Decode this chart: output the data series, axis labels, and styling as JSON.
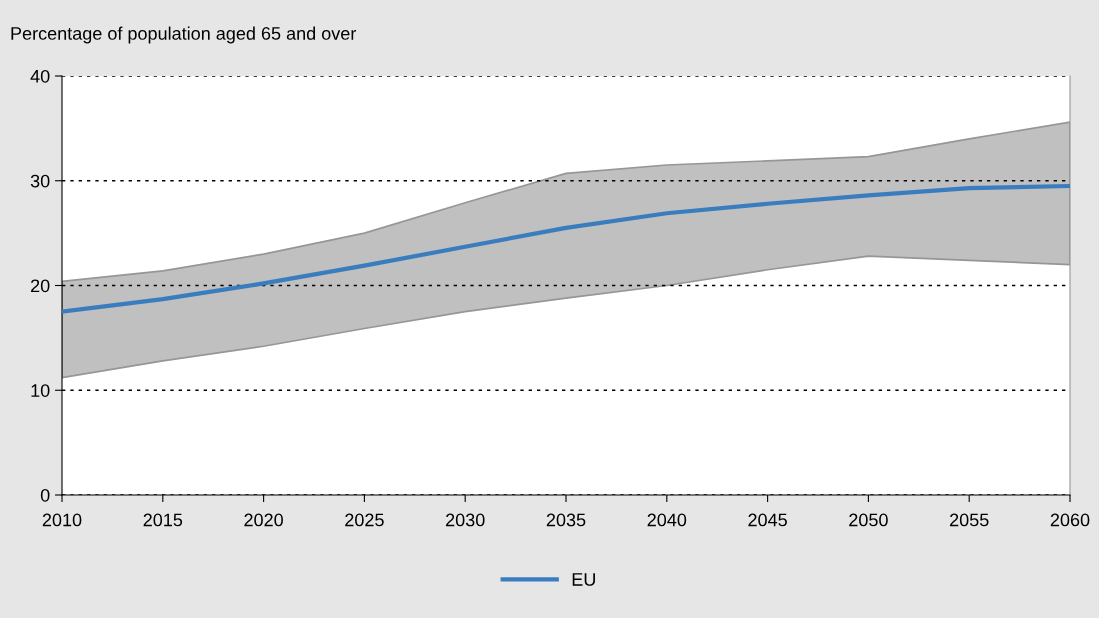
{
  "chart_data": {
    "type": "line",
    "ylabel": "Percentage of population aged 65 and over",
    "x": [
      2010,
      2015,
      2020,
      2025,
      2030,
      2035,
      2040,
      2045,
      2050,
      2055,
      2060
    ],
    "series": [
      {
        "name": "EU",
        "color": "#3a7dbf",
        "values": [
          17.5,
          18.7,
          20.2,
          21.9,
          23.7,
          25.5,
          26.9,
          27.8,
          28.6,
          29.3,
          29.5
        ],
        "lower": [
          11.2,
          12.8,
          14.2,
          15.9,
          17.5,
          18.8,
          20.0,
          21.5,
          22.8,
          22.4,
          22.0
        ],
        "upper": [
          20.4,
          21.4,
          23.0,
          25.0,
          27.9,
          30.7,
          31.5,
          31.9,
          32.3,
          34.0,
          35.6
        ]
      }
    ],
    "xlim": [
      2010,
      2060
    ],
    "xticks": [
      2010,
      2015,
      2020,
      2025,
      2030,
      2035,
      2040,
      2045,
      2050,
      2055,
      2060
    ],
    "ylim": [
      0,
      40
    ],
    "yticks": [
      0,
      10,
      20,
      30,
      40
    ],
    "grid": "y",
    "legend": "bottom",
    "marker": "none",
    "line_style": "solid"
  }
}
